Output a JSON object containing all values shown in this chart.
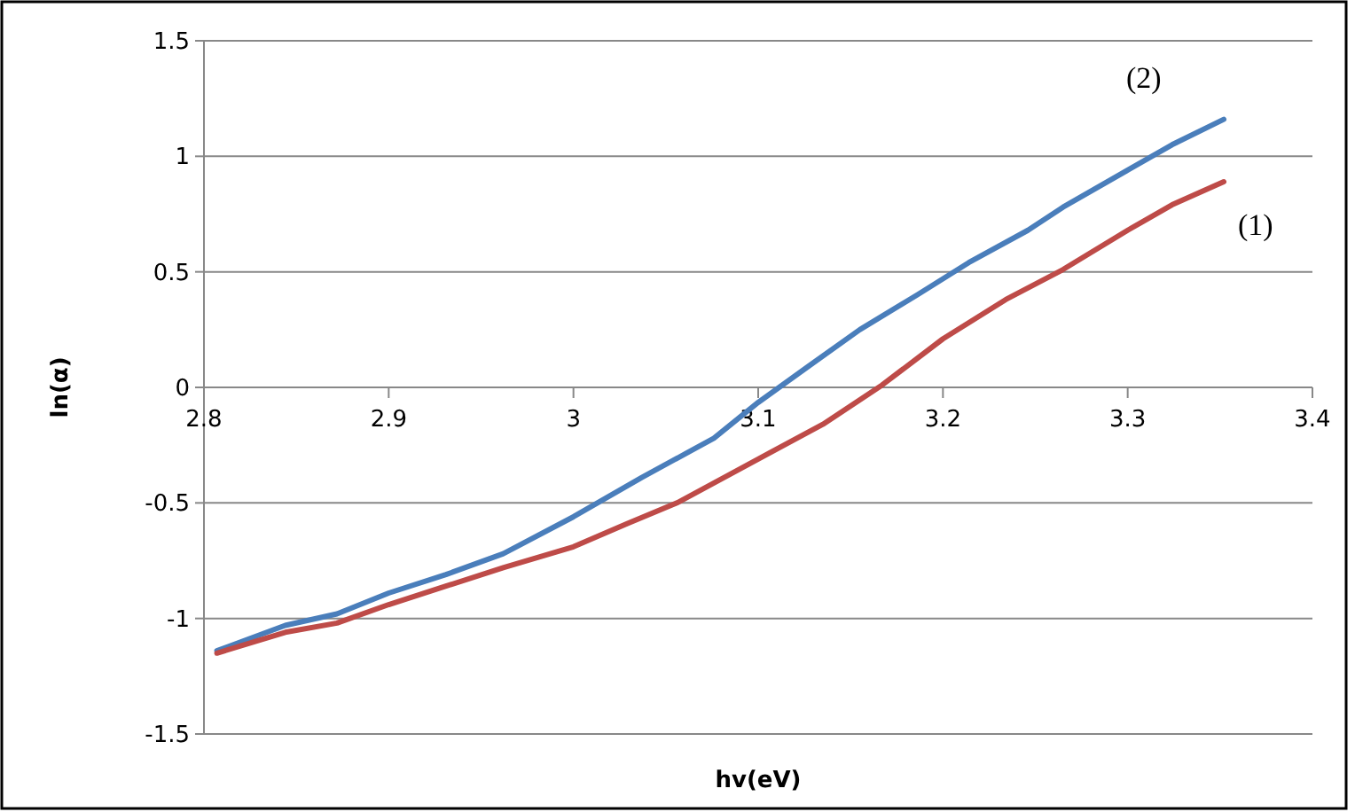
{
  "chart_data": {
    "type": "line",
    "xlabel": "hv(eV)",
    "ylabel": "ln(α)",
    "xlim": [
      2.8,
      3.4
    ],
    "xticks": [
      2.8,
      2.9,
      3,
      3.1,
      3.2,
      3.3,
      3.4
    ],
    "ylim": [
      -1.5,
      1.5
    ],
    "yticks": [
      -1.5,
      -1,
      -0.5,
      0,
      0.5,
      1,
      1.5
    ],
    "grid": "y",
    "marker": "none",
    "line_style": "solid",
    "series": [
      {
        "name": "(2)",
        "color": "#4a7ebb",
        "x": [
          2.807,
          2.844,
          2.872,
          2.9,
          2.931,
          2.962,
          3.0,
          3.037,
          3.076,
          3.1,
          3.127,
          3.155,
          3.186,
          3.214,
          3.246,
          3.265,
          3.3,
          3.324,
          3.352
        ],
        "values": [
          -1.14,
          -1.03,
          -0.98,
          -0.89,
          -0.81,
          -0.72,
          -0.56,
          -0.39,
          -0.22,
          -0.065,
          0.09,
          0.25,
          0.4,
          0.54,
          0.68,
          0.78,
          0.94,
          1.05,
          1.16
        ]
      },
      {
        "name": "(1)",
        "color": "#be4b48",
        "x": [
          2.807,
          2.844,
          2.872,
          2.9,
          2.931,
          2.962,
          3.0,
          3.029,
          3.056,
          3.1,
          3.135,
          3.167,
          3.2,
          3.234,
          3.265,
          3.3,
          3.324,
          3.352
        ],
        "values": [
          -1.15,
          -1.06,
          -1.02,
          -0.94,
          -0.86,
          -0.78,
          -0.69,
          -0.59,
          -0.5,
          -0.31,
          -0.16,
          0.01,
          0.21,
          0.38,
          0.51,
          0.68,
          0.79,
          0.89
        ]
      }
    ]
  }
}
